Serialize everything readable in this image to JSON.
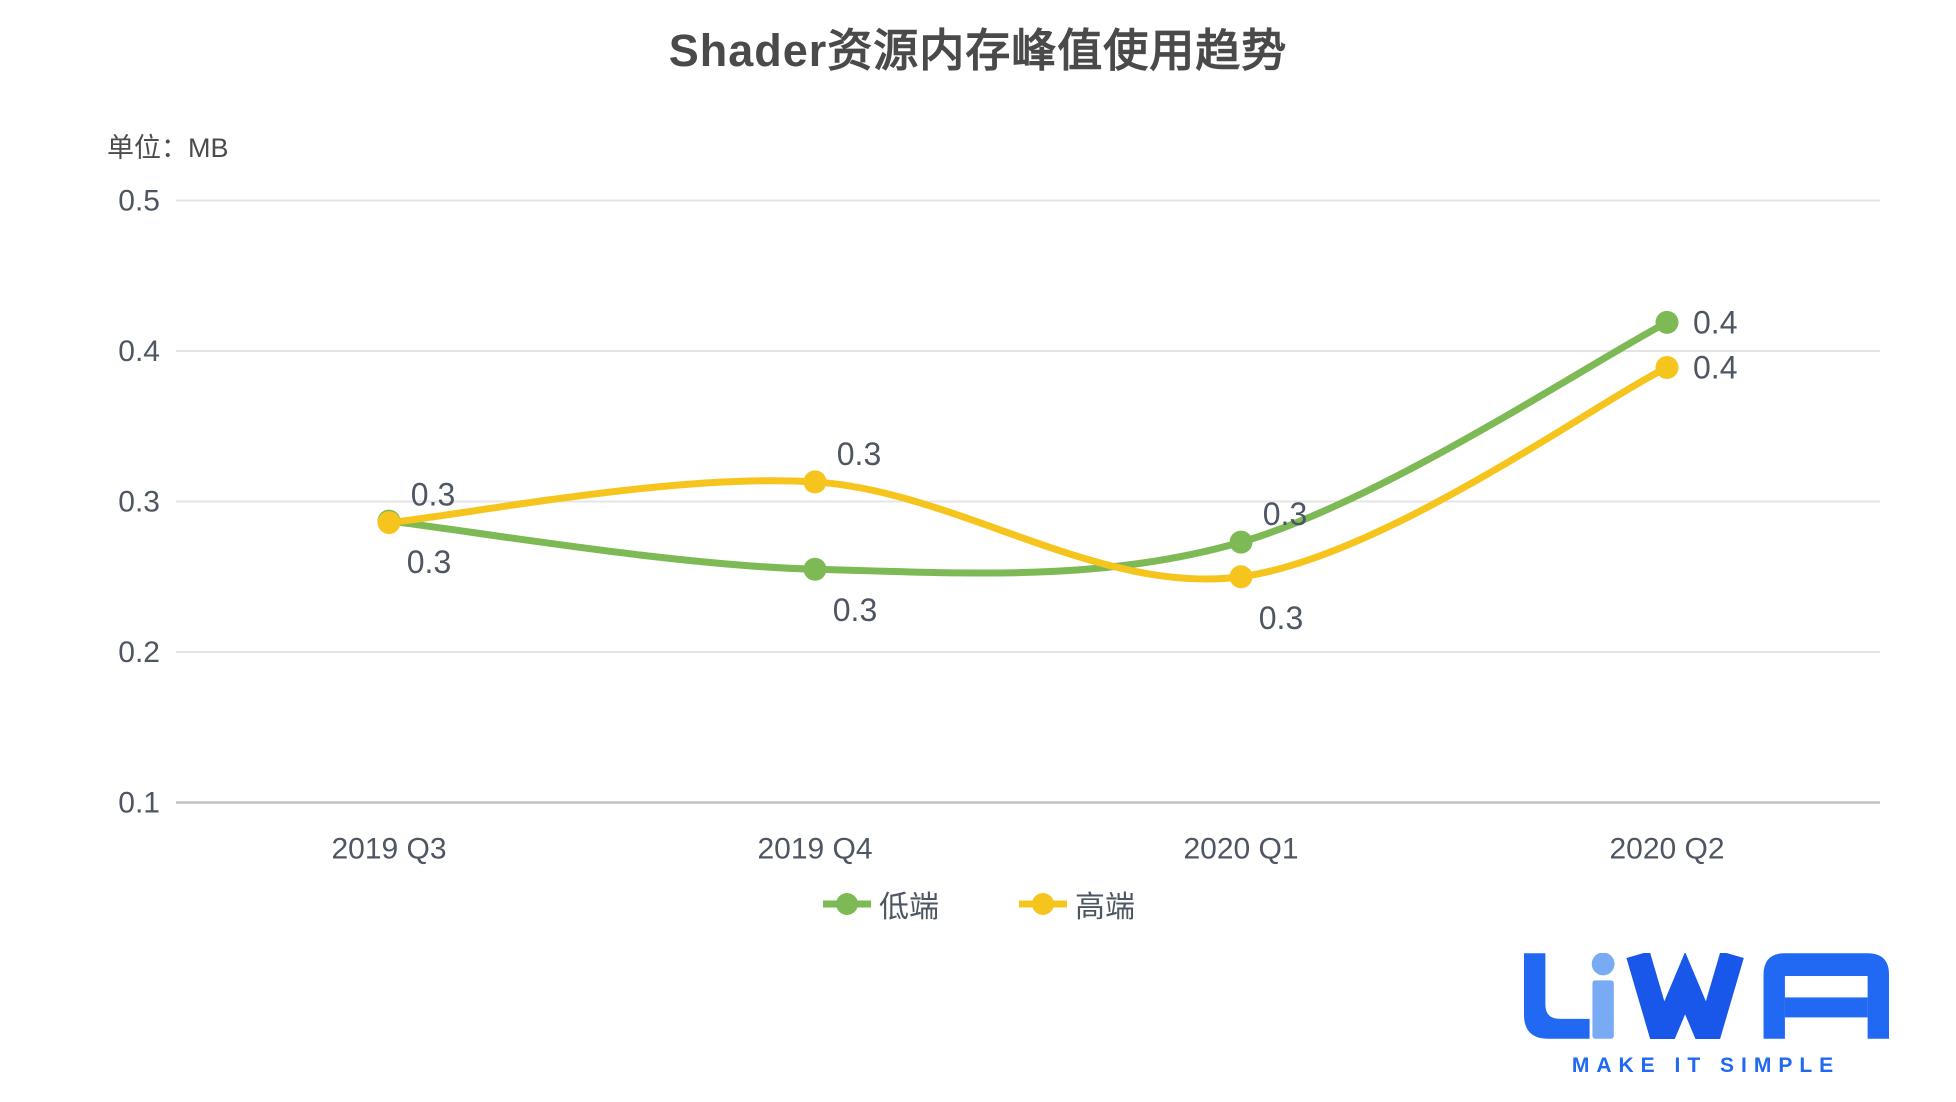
{
  "title": "Shader资源内存峰值使用趋势",
  "unit_label": "单位：MB",
  "colors": {
    "green": "#7DB955",
    "yellow": "#F6C51D",
    "grid": "#E4E4E4",
    "axis_line": "#C4C4C4",
    "axis_text": "#4F5663",
    "title_text": "#4A4A4A",
    "label_text": "#4F5663",
    "logo_blue": "#2169F2",
    "logo_light_blue": "#79ABF4",
    "logo_w_blue": "#1857EA"
  },
  "chart_data": {
    "type": "line",
    "smooth": true,
    "grid": true,
    "legend_position": "bottom",
    "categories": [
      "2019 Q3",
      "2019 Q4",
      "2020 Q1",
      "2020 Q2"
    ],
    "y_ticks": [
      0.1,
      0.2,
      0.3,
      0.4,
      0.5
    ],
    "ylim": [
      0.1,
      0.5
    ],
    "ylabel": "MB",
    "series": [
      {
        "name": "低端",
        "color_key": "green",
        "values": [
          0.287,
          0.255,
          0.273,
          0.419
        ],
        "point_labels": [
          "0.3",
          "0.3",
          "0.3",
          "0.4"
        ],
        "label_placement": [
          "bottom",
          "bottom",
          "top",
          "right"
        ]
      },
      {
        "name": "高端",
        "color_key": "yellow",
        "values": [
          0.286,
          0.313,
          0.25,
          0.389
        ],
        "point_labels": [
          "0.3",
          "0.3",
          "0.3",
          "0.4"
        ],
        "label_placement": [
          "top",
          "top",
          "bottom",
          "right"
        ]
      }
    ]
  },
  "legend": [
    {
      "label": "低端"
    },
    {
      "label": "高端"
    }
  ],
  "logo": {
    "text": "LiWA",
    "tagline": "MAKE IT SIMPLE"
  }
}
